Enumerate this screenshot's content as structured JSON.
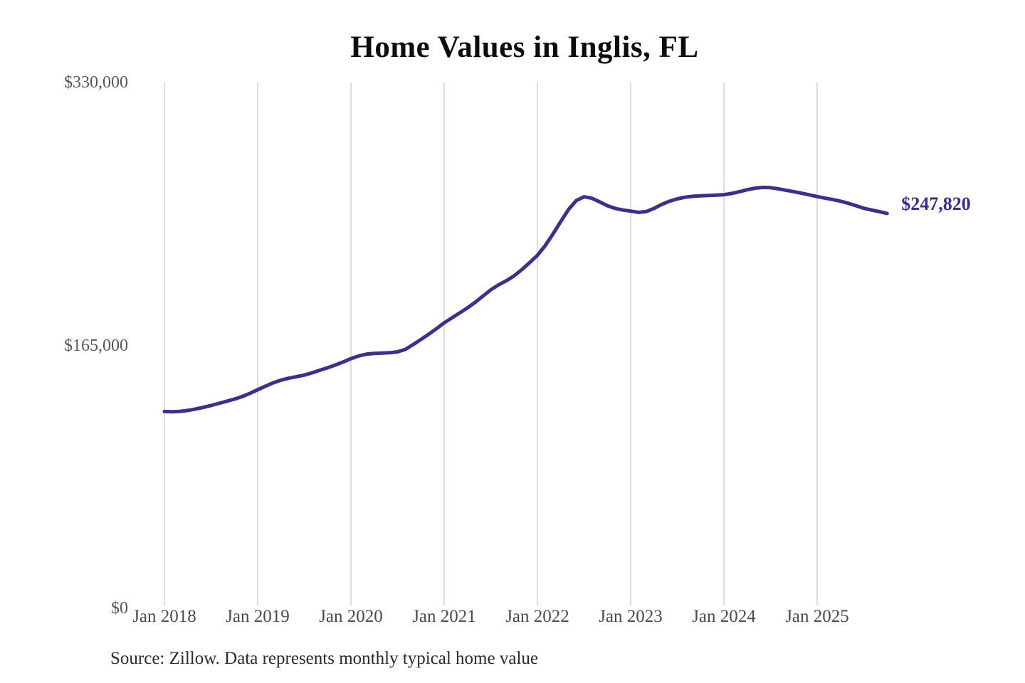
{
  "page": {
    "background": "#ffffff"
  },
  "chart_data": {
    "type": "line",
    "title": "Home Values in Inglis, FL",
    "source_note": "Source: Zillow. Data represents monthly typical home value",
    "series_name": "Monthly typical home value",
    "xlabel": "",
    "ylabel": "",
    "ylim": [
      0,
      330000
    ],
    "grid": "vertical-only",
    "legend": "none",
    "line_color": "#38318f",
    "grid_color": "#cccccc",
    "end_label": "$247,820",
    "end_point": {
      "month": "2025-10",
      "value": 247820
    },
    "x_ticks": [
      "Jan 2018",
      "Jan 2019",
      "Jan 2020",
      "Jan 2021",
      "Jan 2022",
      "Jan 2023",
      "Jan 2024",
      "Jan 2025"
    ],
    "y_ticks": [
      {
        "value": 330000,
        "label": "$330,000"
      },
      {
        "value": 165000,
        "label": "$165,000"
      },
      {
        "value": 0,
        "label": "$0"
      }
    ],
    "x": [
      "2018-01",
      "2018-02",
      "2018-03",
      "2018-04",
      "2018-05",
      "2018-06",
      "2018-07",
      "2018-08",
      "2018-09",
      "2018-10",
      "2018-11",
      "2018-12",
      "2019-01",
      "2019-02",
      "2019-03",
      "2019-04",
      "2019-05",
      "2019-06",
      "2019-07",
      "2019-08",
      "2019-09",
      "2019-10",
      "2019-11",
      "2019-12",
      "2020-01",
      "2020-02",
      "2020-03",
      "2020-04",
      "2020-05",
      "2020-06",
      "2020-07",
      "2020-08",
      "2020-09",
      "2020-10",
      "2020-11",
      "2020-12",
      "2021-01",
      "2021-02",
      "2021-03",
      "2021-04",
      "2021-05",
      "2021-06",
      "2021-07",
      "2021-08",
      "2021-09",
      "2021-10",
      "2021-11",
      "2021-12",
      "2022-01",
      "2022-02",
      "2022-03",
      "2022-04",
      "2022-05",
      "2022-06",
      "2022-07",
      "2022-08",
      "2022-09",
      "2022-10",
      "2022-11",
      "2022-12",
      "2023-01",
      "2023-02",
      "2023-03",
      "2023-04",
      "2023-05",
      "2023-06",
      "2023-07",
      "2023-08",
      "2023-09",
      "2023-10",
      "2023-11",
      "2023-12",
      "2024-01",
      "2024-02",
      "2024-03",
      "2024-04",
      "2024-05",
      "2024-06",
      "2024-07",
      "2024-08",
      "2024-09",
      "2024-10",
      "2024-11",
      "2024-12",
      "2025-01",
      "2025-02",
      "2025-03",
      "2025-04",
      "2025-05",
      "2025-06",
      "2025-07",
      "2025-08",
      "2025-09",
      "2025-10"
    ],
    "values": [
      123500,
      123400,
      123600,
      124200,
      125100,
      126100,
      127300,
      128600,
      129900,
      131300,
      132900,
      134900,
      137200,
      139400,
      141500,
      143200,
      144400,
      145400,
      146400,
      147800,
      149400,
      151000,
      152700,
      154600,
      156700,
      158400,
      159500,
      160000,
      160200,
      160400,
      161000,
      162500,
      165500,
      168700,
      172000,
      175500,
      179200,
      182300,
      185400,
      188600,
      192100,
      196000,
      199900,
      203000,
      205600,
      208700,
      212600,
      217000,
      221600,
      227600,
      234900,
      242800,
      250300,
      255900,
      258300,
      257400,
      255100,
      252700,
      251000,
      250000,
      249300,
      248500,
      249000,
      251000,
      253500,
      255500,
      257000,
      258000,
      258600,
      258900,
      259100,
      259300,
      259600,
      260400,
      261500,
      262700,
      263700,
      264200,
      264000,
      263300,
      262400,
      261500,
      260500,
      259500,
      258400,
      257500,
      256600,
      255500,
      254200,
      252700,
      251100,
      250000,
      249000,
      247820
    ]
  }
}
